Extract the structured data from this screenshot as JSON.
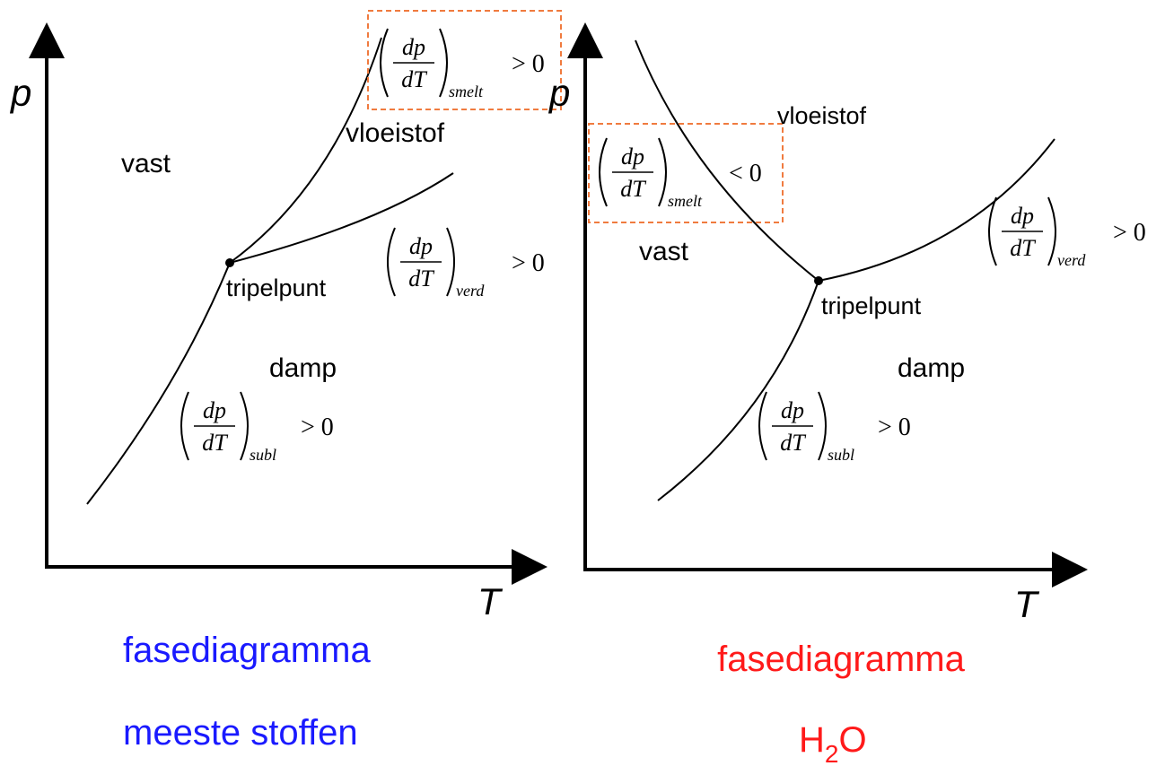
{
  "diagrams": [
    {
      "axis_x": "T",
      "axis_y": "p",
      "regions": {
        "solid": "vast",
        "liquid": "vloeistof",
        "vapor": "damp"
      },
      "triple_point": "tripelpunt",
      "equations": [
        {
          "numerator": "dp",
          "denominator": "dT",
          "subscript": "smelt",
          "relation": "> 0"
        },
        {
          "numerator": "dp",
          "denominator": "dT",
          "subscript": "verd",
          "relation": "> 0"
        },
        {
          "numerator": "dp",
          "denominator": "dT",
          "subscript": "subl",
          "relation": "> 0"
        }
      ],
      "caption": {
        "line1": "fasediagramma",
        "line2": "meeste stoffen"
      }
    },
    {
      "axis_x": "T",
      "axis_y": "p",
      "regions": {
        "solid": "vast",
        "liquid": "vloeistof",
        "vapor": "damp"
      },
      "triple_point": "tripelpunt",
      "equations": [
        {
          "numerator": "dp",
          "denominator": "dT",
          "subscript": "smelt",
          "relation": "< 0"
        },
        {
          "numerator": "dp",
          "denominator": "dT",
          "subscript": "verd",
          "relation": "> 0"
        },
        {
          "numerator": "dp",
          "denominator": "dT",
          "subscript": "subl",
          "relation": "> 0"
        }
      ],
      "caption": {
        "line1": "fasediagramma",
        "formula": {
          "base": "H",
          "sub": "2",
          "rest": "O"
        }
      }
    }
  ]
}
